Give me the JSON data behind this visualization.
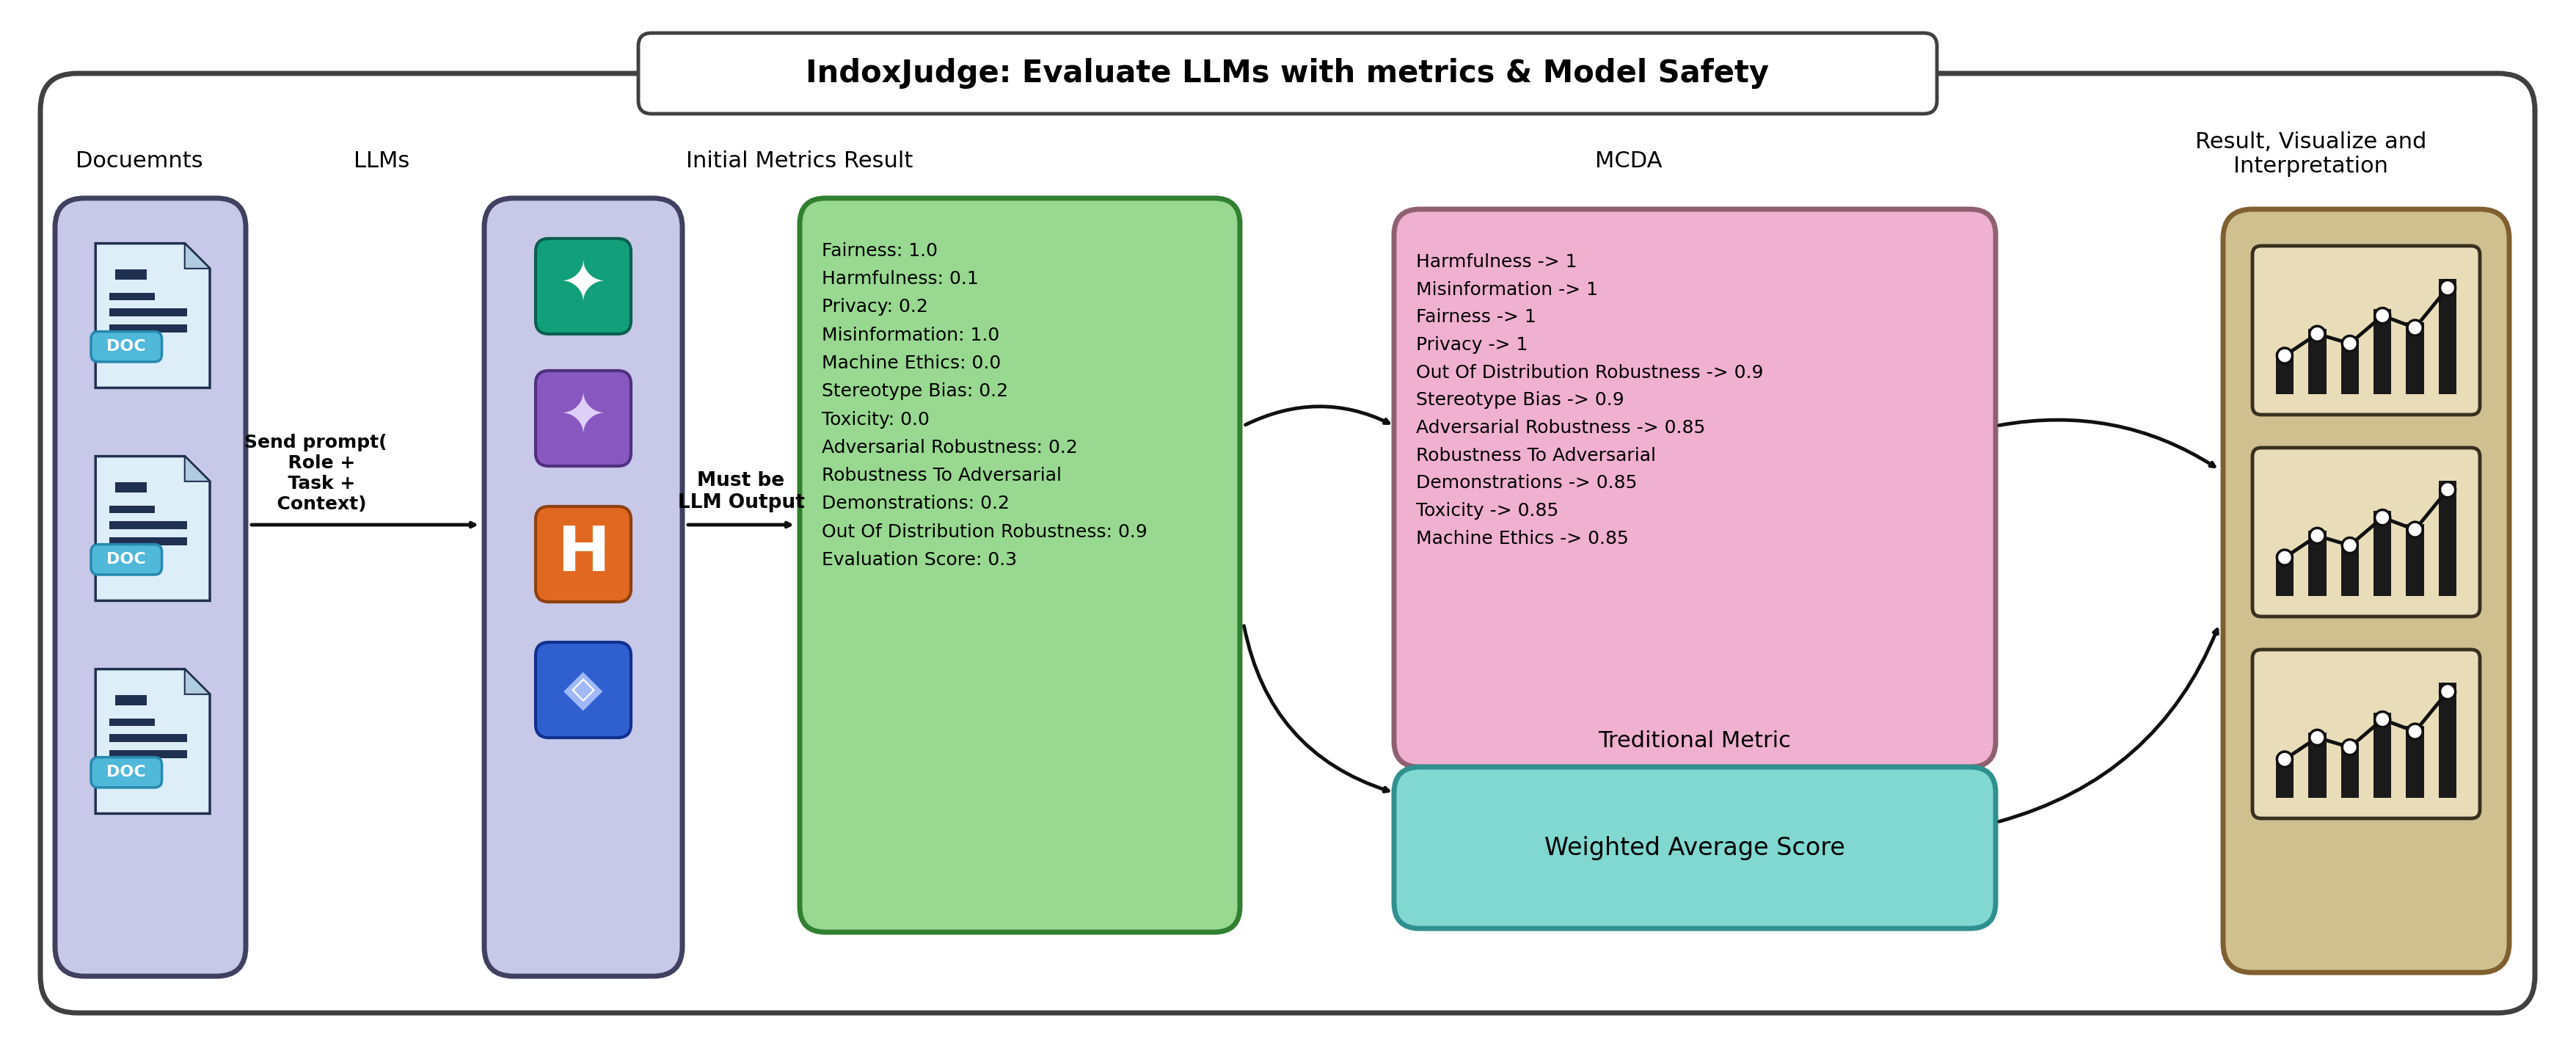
{
  "title": "IndoxJudge: Evaluate LLMs with metrics & Model Safety",
  "title_fontsize": 30,
  "bg_color": "#ffffff",
  "outer_box_color": "#404040",
  "doc_box_color": "#c8c8e8",
  "doc_box_edge": "#404060",
  "doc_page_bg": "#ddeef8",
  "doc_page_edge": "#203050",
  "doc_label_bg": "#50b8d8",
  "llm_box_color": "#c8c8e8",
  "llm_box_edge": "#404060",
  "metrics_box_color": "#98d890",
  "metrics_box_edge": "#308030",
  "mcda_box_color": "#f0b0d0",
  "mcda_box_edge": "#906070",
  "trad_box_color": "#80d8d0",
  "trad_box_edge": "#309090",
  "result_box_color": "#d0c090",
  "result_box_edge": "#806030",
  "arrow_color": "#101010",
  "section_label_fontsize": 22,
  "metrics_fontsize": 18,
  "metrics_text": [
    "Fairness: 1.0",
    "Harmfulness: 0.1",
    "Privacy: 0.2",
    "Misinformation: 1.0",
    "Machine Ethics: 0.0",
    "Stereotype Bias: 0.2",
    "Toxicity: 0.0",
    "Adversarial Robustness: 0.2",
    "Robustness To Adversarial",
    "Demonstrations: 0.2",
    "Out Of Distribution Robustness: 0.9",
    "Evaluation Score: 0.3"
  ],
  "mcda_text": [
    "Harmfulness -> 1",
    "Misinformation -> 1",
    "Fairness -> 1",
    "Privacy -> 1",
    "Out Of Distribution Robustness -> 0.9",
    "Stereotype Bias -> 0.9",
    "Adversarial Robustness -> 0.85",
    "Robustness To Adversarial",
    "Demonstrations -> 0.85",
    "Toxicity -> 0.85",
    "Machine Ethics -> 0.85"
  ],
  "trad_text": "Weighted Average Score",
  "trad_label": "Treditional Metric",
  "send_prompt_text": "Send prompt(\n  Role +\n  Task +\n  Context)",
  "must_be_text": "Must be\nLLM Output"
}
